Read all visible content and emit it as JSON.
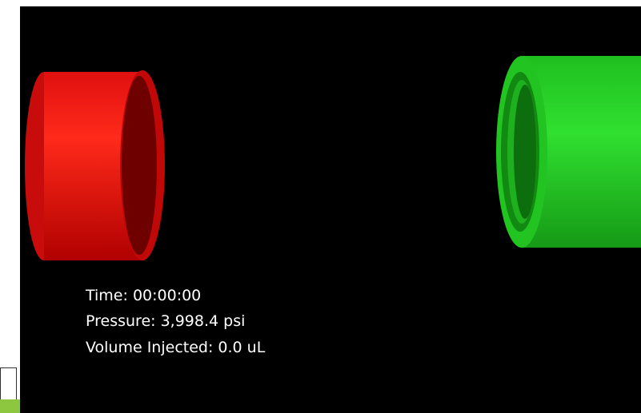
{
  "readouts": [
    "Time: 00:00:00",
    "Pressure: 3,998.4 psi",
    "Volume Injected: 0.0 uL"
  ]
}
